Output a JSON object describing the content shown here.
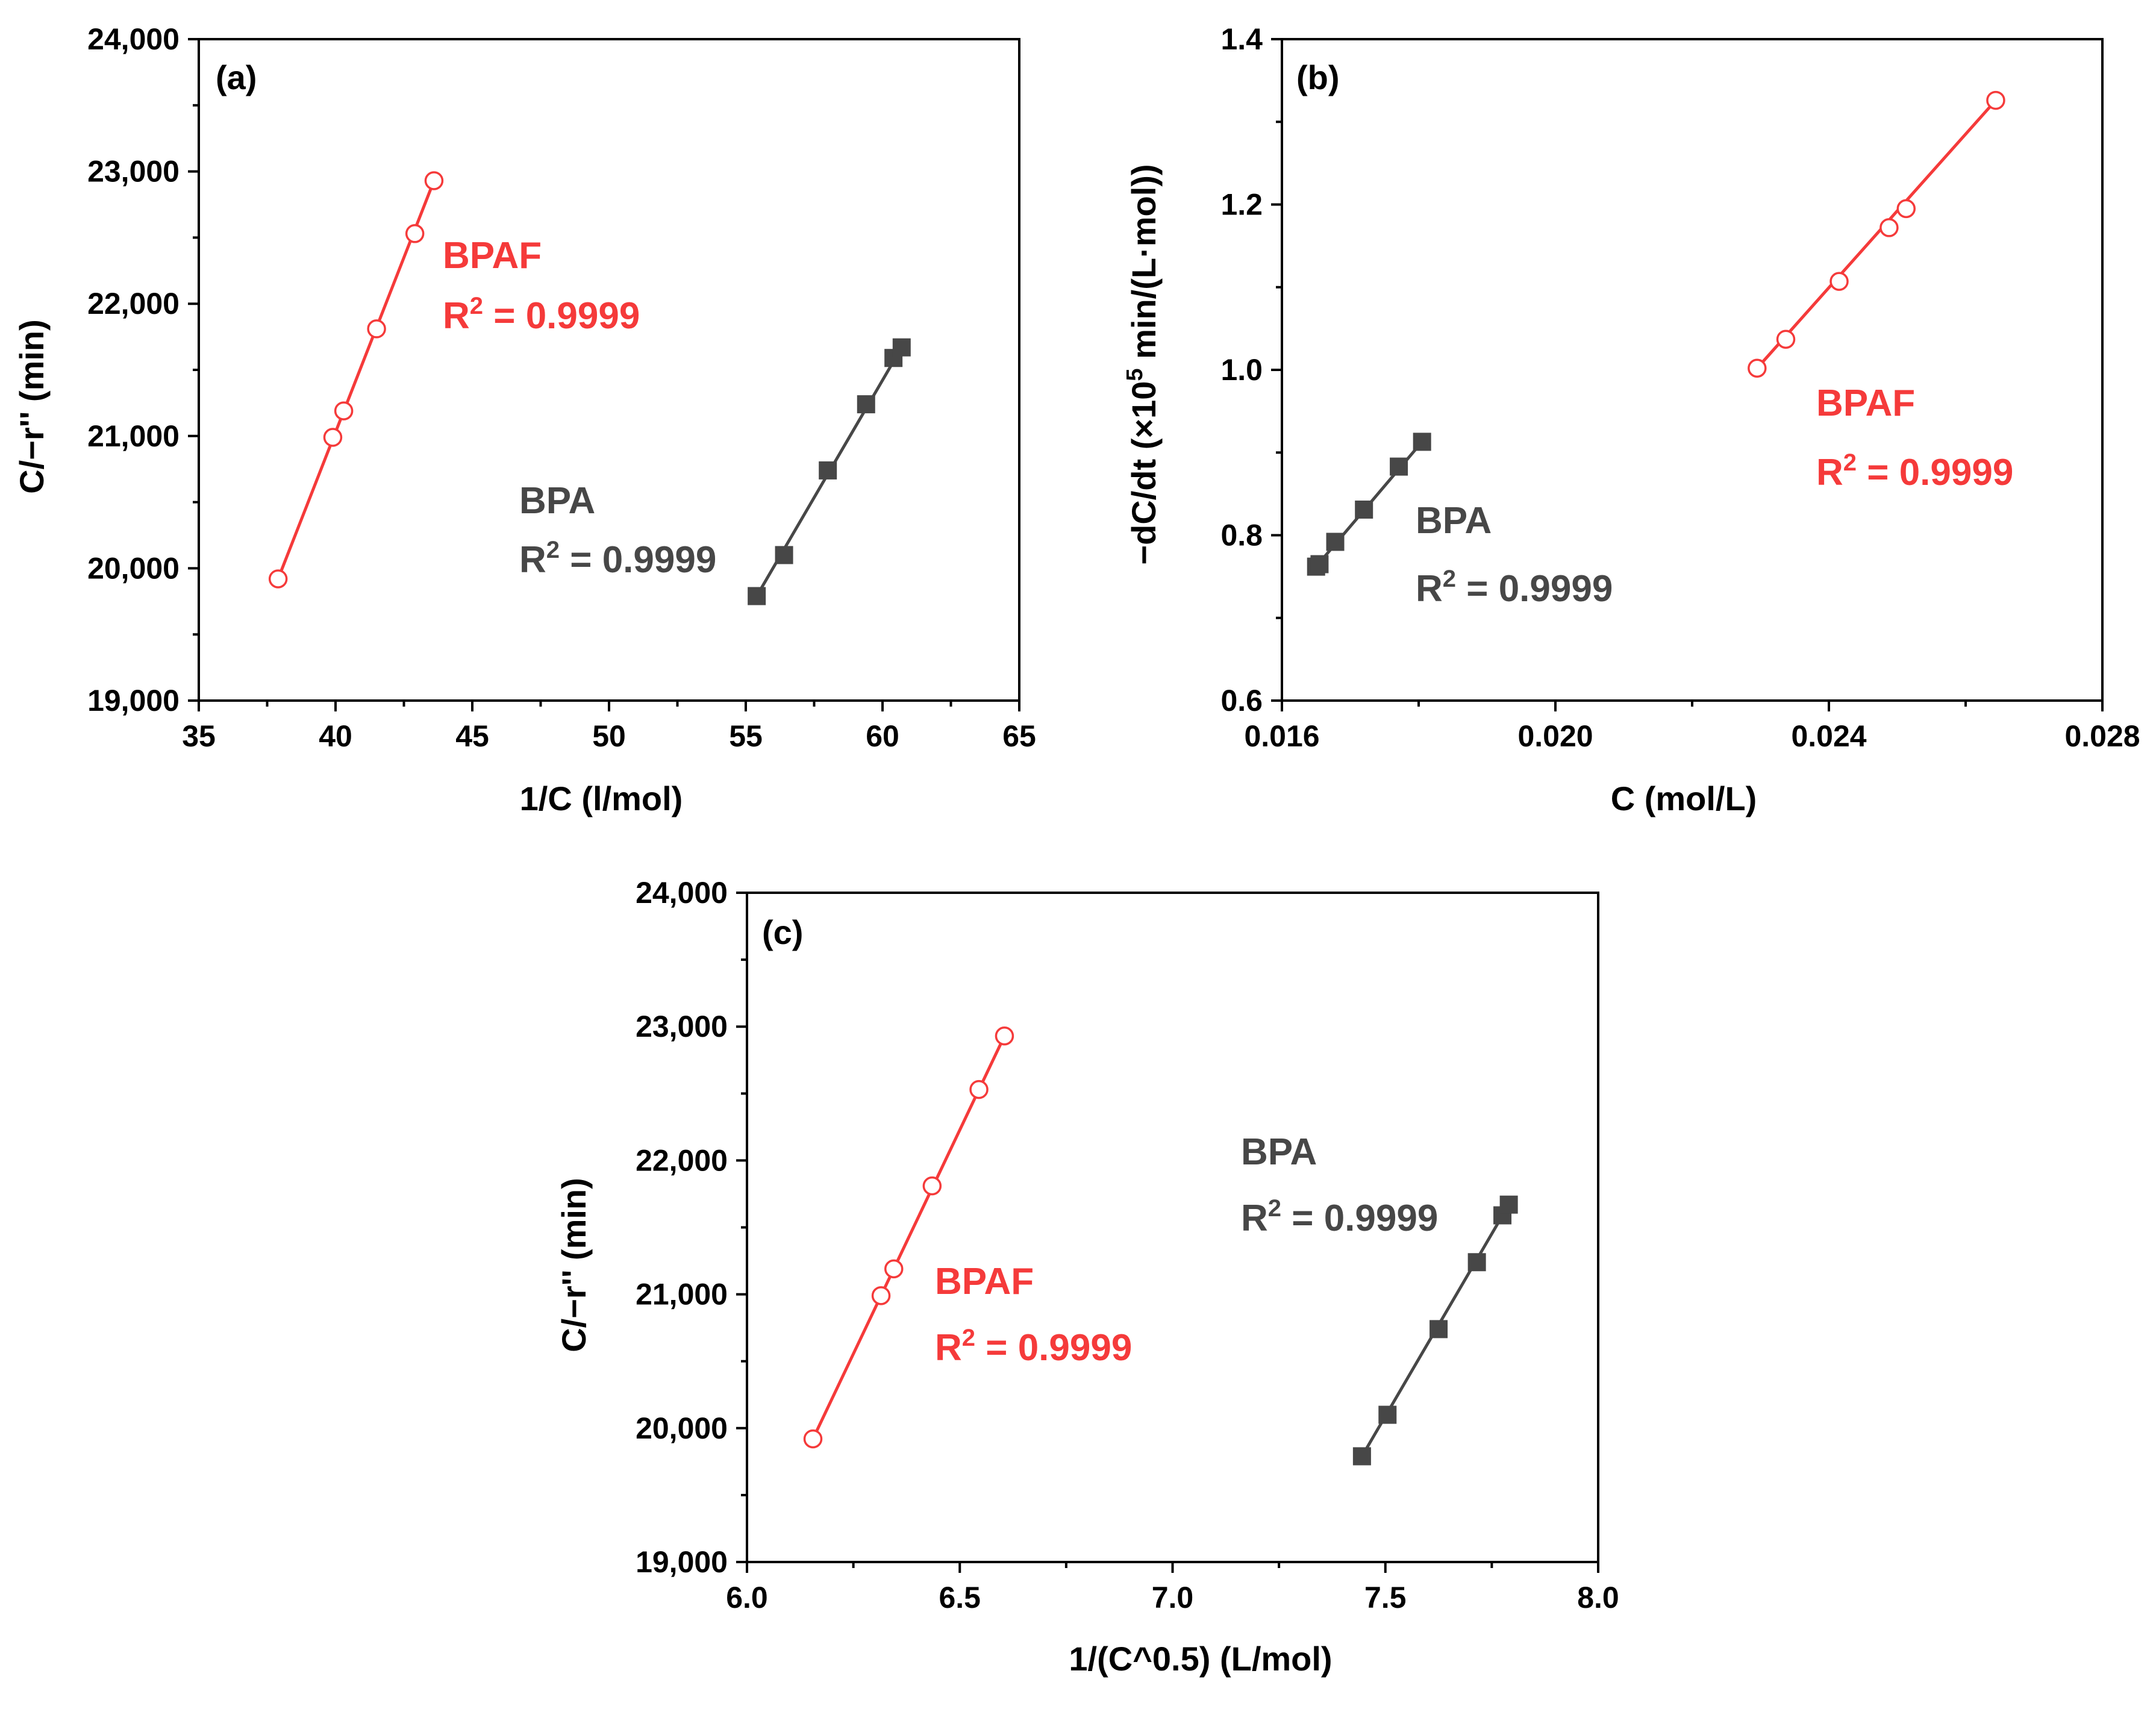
{
  "figure_title": "",
  "colors": {
    "bpaf": "#f53a3a",
    "bpa": "#474747",
    "axis": "#000000"
  },
  "chart_data": [
    {
      "type": "scatter",
      "panel": "(a)",
      "xlabel": "1/C (l/mol)",
      "ylabel": "C/−r'' (min)",
      "xlim": [
        35,
        65
      ],
      "ylim": [
        19000,
        24000
      ],
      "xticks": [
        35,
        40,
        45,
        50,
        55,
        60,
        65
      ],
      "yticks": [
        19000,
        20000,
        21000,
        22000,
        23000,
        24000
      ],
      "xtick_labels": [
        "35",
        "40",
        "45",
        "50",
        "55",
        "60",
        "65"
      ],
      "ytick_labels": [
        "19,000",
        "20,000",
        "21,000",
        "22,000",
        "23,000",
        "24,000"
      ],
      "series": [
        {
          "name": "BPAF",
          "marker": "open-circle",
          "color": "#f53a3a",
          "x": [
            37.9,
            39.9,
            40.3,
            41.5,
            42.9,
            43.6
          ],
          "y": [
            19920,
            20990,
            21190,
            21810,
            22530,
            22930
          ],
          "fit_x": [
            37.9,
            43.6
          ],
          "fit_y": [
            19920,
            22930
          ]
        },
        {
          "name": "BPA",
          "marker": "filled-square",
          "color": "#474747",
          "x": [
            55.4,
            56.4,
            58.0,
            59.4,
            60.4,
            60.7
          ],
          "y": [
            19790,
            20100,
            20740,
            21240,
            21590,
            21670
          ],
          "fit_x": [
            55.4,
            60.7
          ],
          "fit_y": [
            19790,
            21670
          ]
        }
      ],
      "annotations": [
        {
          "series": "BPAF",
          "name": "BPAF",
          "r2_prefix": "R",
          "r2_sup": "2",
          "r2_value": " = 0.9999"
        },
        {
          "series": "BPA",
          "name": "BPA",
          "r2_prefix": "R",
          "r2_sup": "2",
          "r2_value": " = 0.9999"
        }
      ]
    },
    {
      "type": "scatter",
      "panel": "(b)",
      "xlabel": "C (mol/L)",
      "ylabel_main": "−dC/dt (×10",
      "ylabel_sup": "5",
      "ylabel_tail": " min/(L·mol))",
      "xlim": [
        0.016,
        0.028
      ],
      "ylim": [
        0.6,
        1.4
      ],
      "xticks": [
        0.016,
        0.02,
        0.024,
        0.028
      ],
      "yticks": [
        0.6,
        0.8,
        1.0,
        1.2,
        1.4
      ],
      "xtick_labels": [
        "0.016",
        "0.020",
        "0.024",
        "0.028"
      ],
      "ytick_labels": [
        "0.6",
        "0.8",
        "1.0",
        "1.2",
        "1.4"
      ],
      "series": [
        {
          "name": "BPAF",
          "marker": "open-circle",
          "color": "#f53a3a",
          "x": [
            0.02295,
            0.02337,
            0.02415,
            0.02488,
            0.02513,
            0.02644
          ],
          "y": [
            1.002,
            1.037,
            1.107,
            1.172,
            1.195,
            1.326
          ],
          "fit_x": [
            0.02295,
            0.02644
          ],
          "fit_y": [
            1.002,
            1.326
          ]
        },
        {
          "name": "BPA",
          "marker": "filled-square",
          "color": "#474747",
          "x": [
            0.0165,
            0.01655,
            0.01678,
            0.0172,
            0.01771,
            0.01805
          ],
          "y": [
            0.762,
            0.765,
            0.792,
            0.831,
            0.883,
            0.913
          ],
          "fit_x": [
            0.0165,
            0.01805
          ],
          "fit_y": [
            0.762,
            0.913
          ]
        }
      ],
      "annotations": [
        {
          "series": "BPAF",
          "name": "BPAF",
          "r2_prefix": "R",
          "r2_sup": "2",
          "r2_value": " = 0.9999"
        },
        {
          "series": "BPA",
          "name": "BPA",
          "r2_prefix": "R",
          "r2_sup": "2",
          "r2_value": " = 0.9999"
        }
      ]
    },
    {
      "type": "scatter",
      "panel": "(c)",
      "xlabel": "1/(C^0.5) (L/mol)",
      "ylabel": "C/−r'' (min)",
      "xlim": [
        6.0,
        8.0
      ],
      "ylim": [
        19000,
        24000
      ],
      "xticks": [
        6.0,
        6.5,
        7.0,
        7.5,
        8.0
      ],
      "yticks": [
        19000,
        20000,
        21000,
        22000,
        23000,
        24000
      ],
      "xtick_labels": [
        "6.0",
        "6.5",
        "7.0",
        "7.5",
        "8.0"
      ],
      "ytick_labels": [
        "19,000",
        "20,000",
        "21,000",
        "22,000",
        "23,000",
        "24,000"
      ],
      "series": [
        {
          "name": "BPAF",
          "marker": "open-circle",
          "color": "#f53a3a",
          "x": [
            6.155,
            6.315,
            6.345,
            6.435,
            6.545,
            6.605
          ],
          "y": [
            19920,
            20990,
            21190,
            21810,
            22530,
            22930
          ],
          "fit_x": [
            6.155,
            6.605
          ],
          "fit_y": [
            19920,
            22930
          ]
        },
        {
          "name": "BPA",
          "marker": "filled-square",
          "color": "#474747",
          "x": [
            7.445,
            7.505,
            7.625,
            7.715,
            7.775,
            7.79
          ],
          "y": [
            19790,
            20100,
            20740,
            21240,
            21590,
            21670
          ],
          "fit_x": [
            7.445,
            7.79
          ],
          "fit_y": [
            19790,
            21670
          ]
        }
      ],
      "annotations": [
        {
          "series": "BPAF",
          "name": "BPAF",
          "r2_prefix": "R",
          "r2_sup": "2",
          "r2_value": " = 0.9999"
        },
        {
          "series": "BPA",
          "name": "BPA",
          "r2_prefix": "R",
          "r2_sup": "2",
          "r2_value": " = 0.9999"
        }
      ]
    }
  ]
}
